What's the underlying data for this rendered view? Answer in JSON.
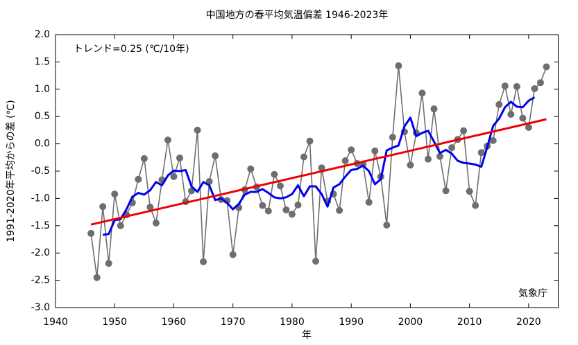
{
  "chart_data": {
    "type": "line",
    "title": "中国地方の春平均気温偏差  1946-2023年",
    "x_label": "年",
    "y_label": "1991-2020年平均からの差 (℃)",
    "annotations": [
      "トレンド=0.25 (℃/10年)",
      "気象庁"
    ],
    "xlim": [
      1940,
      2025
    ],
    "xticks": [
      1940,
      1950,
      1960,
      1970,
      1980,
      1990,
      2000,
      2010,
      2020
    ],
    "ylim": [
      -3.0,
      2.0
    ],
    "yticks": [
      {
        "value": 2,
        "label": "2.0"
      },
      1.5,
      {
        "value": 1,
        "label": "1.0"
      },
      0.5,
      {
        "value": 0,
        "label": "0.0"
      },
      -0.5,
      {
        "value": -1,
        "label": "-1.0"
      },
      -1.5,
      {
        "value": -2,
        "label": "-2.0"
      },
      -2.5,
      {
        "value": -3,
        "label": "-3.0"
      }
    ],
    "series": [
      {
        "color": "#6e6e6e",
        "markers": true,
        "x": [
          1946,
          1947,
          1948,
          1949,
          1950,
          1951,
          1952,
          1953,
          1954,
          1955,
          1956,
          1957,
          1958,
          1959,
          1960,
          1961,
          1962,
          1963,
          1964,
          1965,
          1966,
          1967,
          1968,
          1969,
          1970,
          1971,
          1972,
          1973,
          1974,
          1975,
          1976,
          1977,
          1978,
          1979,
          1980,
          1981,
          1982,
          1983,
          1984,
          1985,
          1986,
          1987,
          1988,
          1989,
          1990,
          1991,
          1992,
          1993,
          1994,
          1995,
          1996,
          1997,
          1998,
          1999,
          2000,
          2001,
          2002,
          2003,
          2004,
          2005,
          2006,
          2007,
          2008,
          2009,
          2010,
          2011,
          2012,
          2013,
          2014,
          2015,
          2016,
          2017,
          2018,
          2019,
          2020,
          2021,
          2022,
          2023
        ],
        "values": [
          -1.64,
          -2.45,
          -1.15,
          -2.19,
          -0.92,
          -1.5,
          -1.3,
          -1.08,
          -0.65,
          -0.27,
          -1.16,
          -1.45,
          -0.66,
          0.07,
          -0.6,
          -0.26,
          -1.06,
          -0.86,
          0.25,
          -2.16,
          -0.69,
          -0.22,
          -1.02,
          -1.04,
          -2.03,
          -1.17,
          -0.84,
          -0.46,
          -0.79,
          -1.13,
          -1.23,
          -0.56,
          -0.77,
          -1.21,
          -1.29,
          -1.12,
          -0.24,
          0.05,
          -2.15,
          -0.44,
          -1.05,
          -0.92,
          -1.22,
          -0.31,
          -0.11,
          -0.36,
          -0.37,
          -1.07,
          -0.13,
          -0.6,
          -1.49,
          0.12,
          1.43,
          0.22,
          -0.39,
          0.2,
          0.93,
          -0.28,
          0.64,
          -0.23,
          -0.86,
          -0.07,
          0.08,
          0.24,
          -0.87,
          -1.13,
          -0.16,
          -0.04,
          0.06,
          0.72,
          1.06,
          0.54,
          1.05,
          0.47,
          0.3,
          1.01,
          1.12,
          1.41
        ]
      },
      {
        "color": "#0000ee",
        "markers": false,
        "x": [
          1948,
          1949,
          1950,
          1951,
          1952,
          1953,
          1954,
          1955,
          1956,
          1957,
          1958,
          1959,
          1960,
          1961,
          1962,
          1963,
          1964,
          1965,
          1966,
          1967,
          1968,
          1969,
          1970,
          1971,
          1972,
          1973,
          1974,
          1975,
          1976,
          1977,
          1978,
          1979,
          1980,
          1981,
          1982,
          1983,
          1984,
          1985,
          1986,
          1987,
          1988,
          1989,
          1990,
          1991,
          1992,
          1993,
          1994,
          1995,
          1996,
          1997,
          1998,
          1999,
          2000,
          2001,
          2002,
          2003,
          2004,
          2005,
          2006,
          2007,
          2008,
          2009,
          2010,
          2011,
          2012,
          2013,
          2014,
          2015,
          2016,
          2017,
          2018,
          2019,
          2020,
          2021
        ],
        "values": [
          -1.67,
          -1.65,
          -1.4,
          -1.38,
          -1.2,
          -0.97,
          -0.9,
          -0.93,
          -0.85,
          -0.7,
          -0.76,
          -0.58,
          -0.49,
          -0.5,
          -0.48,
          -0.78,
          -0.88,
          -0.7,
          -0.76,
          -1.03,
          -1.0,
          -1.08,
          -1.2,
          -1.1,
          -0.93,
          -0.88,
          -0.88,
          -0.83,
          -0.9,
          -0.98,
          -1.0,
          -0.98,
          -0.92,
          -0.76,
          -0.96,
          -0.78,
          -0.78,
          -0.92,
          -1.15,
          -0.8,
          -0.74,
          -0.6,
          -0.48,
          -0.46,
          -0.4,
          -0.5,
          -0.74,
          -0.65,
          -0.12,
          -0.07,
          -0.03,
          0.32,
          0.48,
          0.14,
          0.2,
          0.24,
          0.04,
          -0.17,
          -0.11,
          -0.18,
          -0.31,
          -0.35,
          -0.36,
          -0.38,
          -0.42,
          -0.06,
          0.33,
          0.46,
          0.67,
          0.77,
          0.68,
          0.67,
          0.79,
          0.85
        ]
      },
      {
        "color": "#ee0000",
        "markers": false,
        "x": [
          1946,
          2023
        ],
        "values": [
          -1.48,
          0.45
        ]
      }
    ]
  }
}
